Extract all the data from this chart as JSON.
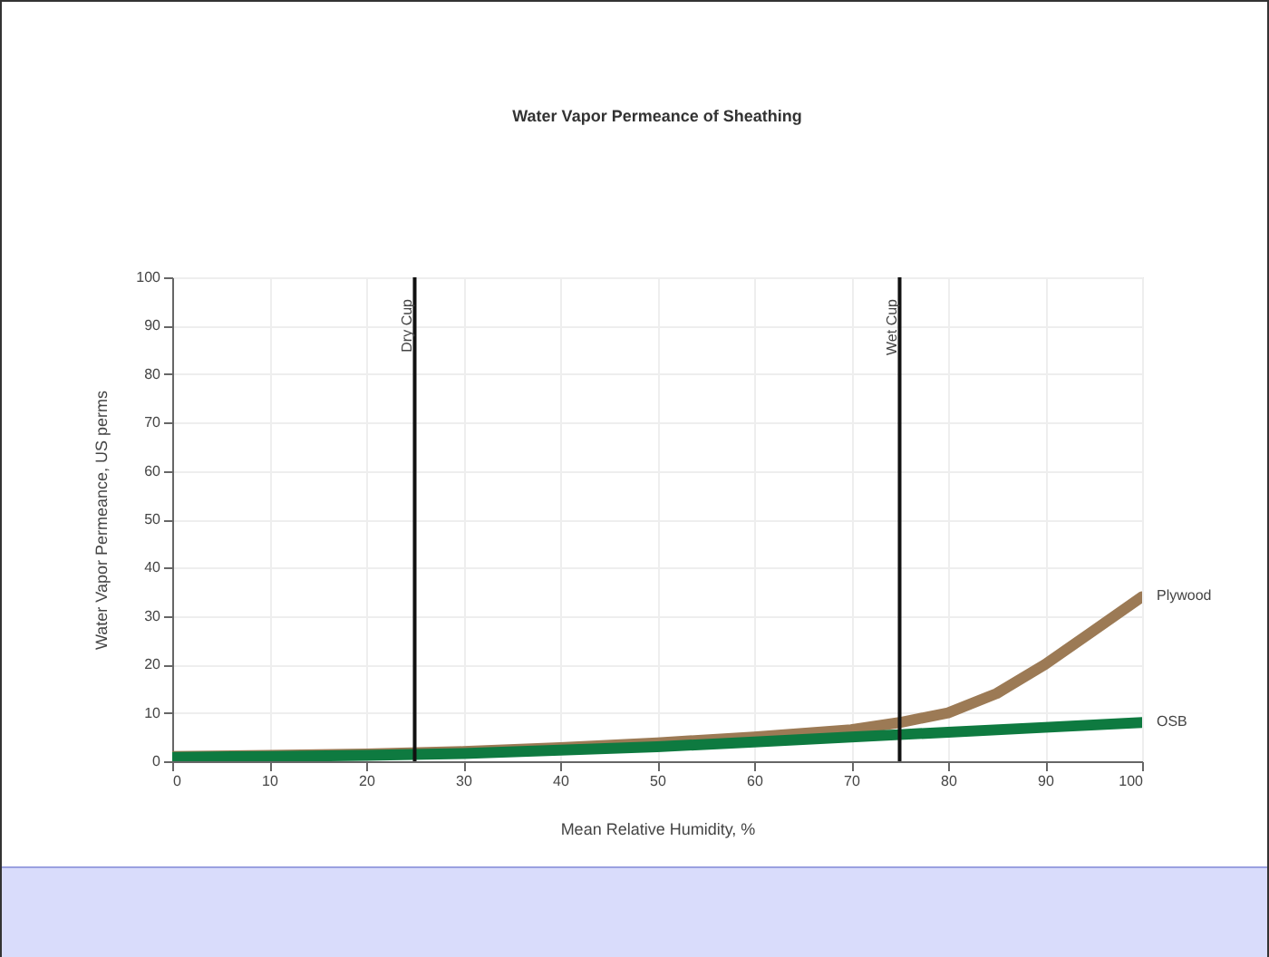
{
  "chart_data": {
    "type": "line",
    "title": "Water Vapor Permeance of Sheathing",
    "xlabel": "Mean Relative Humidity, %",
    "ylabel": "Water Vapor Permeance, US perms",
    "x": [
      0,
      10,
      20,
      30,
      40,
      50,
      60,
      70,
      75,
      80,
      85,
      90,
      95,
      100
    ],
    "series": [
      {
        "name": "Plywood",
        "color": "#9c7a55",
        "values": [
          1,
          1.2,
          1.5,
          2,
          2.8,
          3.8,
          5,
          6.5,
          8,
          10,
          14,
          20,
          27,
          34
        ]
      },
      {
        "name": "OSB",
        "color": "#0e7a40",
        "x": [
          0,
          10,
          20,
          30,
          40,
          50,
          60,
          70,
          75,
          80,
          90,
          100
        ],
        "values": [
          0.8,
          1,
          1.2,
          1.6,
          2.3,
          3,
          4,
          5,
          5.5,
          6,
          7,
          8
        ]
      }
    ],
    "xlim": [
      0,
      100
    ],
    "xticks": [
      0,
      10,
      20,
      30,
      40,
      50,
      60,
      70,
      80,
      90,
      100
    ],
    "ylim": [
      0,
      100
    ],
    "yticks": [
      0,
      10,
      20,
      30,
      40,
      50,
      60,
      70,
      80,
      90,
      100
    ],
    "ref_lines": [
      {
        "axis": "x",
        "value": 25,
        "label": "Dry Cup"
      },
      {
        "axis": "x",
        "value": 75,
        "label": "Wet Cup"
      }
    ],
    "grid": true,
    "legend": false,
    "marker": "none",
    "line_style": "solid"
  }
}
